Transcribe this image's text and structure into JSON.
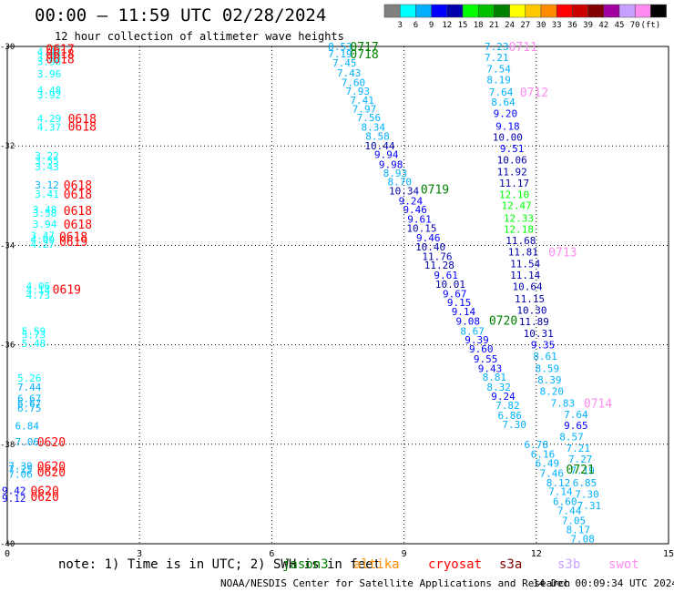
{
  "header": {
    "title": "00:00 — 11:59 UTC 02/28/2024",
    "subtitle": "12 hour collection of altimeter wave heights"
  },
  "footer": {
    "note": "note: 1) Time is in UTC; 2) SWH is in feet",
    "credit": "NOAA/NESDIS Center for Satellite Applications and Research",
    "timestamp": "14 Dec 00:09:34 UTC 2024"
  },
  "satellites": [
    {
      "name": "jason3",
      "color": "#008000"
    },
    {
      "name": "altika",
      "color": "#ff8c00"
    },
    {
      "name": "cryosat",
      "color": "#ff0000"
    },
    {
      "name": "s3a",
      "color": "#800000"
    },
    {
      "name": "s3b",
      "color": "#c8a0ff"
    },
    {
      "name": "swot",
      "color": "#ff8cf0"
    }
  ],
  "colorbar": {
    "colors": [
      "#808080",
      "#00ffff",
      "#00b0ff",
      "#0000ff",
      "#0000aa",
      "#00ff00",
      "#00c000",
      "#008000",
      "#ffff00",
      "#ffc800",
      "#ff8c00",
      "#ff0000",
      "#c80000",
      "#800000",
      "#a000a0",
      "#c8a0ff",
      "#ff8cf0",
      "#000000"
    ],
    "labels": [
      "3",
      "6",
      "9",
      "12",
      "15",
      "18",
      "21",
      "24",
      "27",
      "30",
      "33",
      "36",
      "39",
      "42",
      "45",
      "70",
      "(ft)"
    ]
  },
  "chart_data": {
    "type": "scatter",
    "xlim": [
      0,
      15
    ],
    "ylim": [
      -40,
      -30
    ],
    "x_ticks": [
      "0",
      "3",
      "6",
      "9",
      "12",
      "15"
    ],
    "y_ticks": [
      "-30",
      "-32",
      "-34",
      "-36",
      "-38",
      "-40"
    ],
    "grid": true,
    "points": [
      {
        "x": 0.95,
        "y": -30.1,
        "v": "4.44",
        "c": "#00ffff"
      },
      {
        "x": 0.95,
        "y": -30.22,
        "v": "3.79",
        "c": "#00ffff"
      },
      {
        "x": 0.95,
        "y": -30.3,
        "v": "3.96",
        "c": "#00ffff"
      },
      {
        "x": 0.95,
        "y": -30.55,
        "v": "3.96",
        "c": "#00ffff"
      },
      {
        "x": 0.95,
        "y": -30.88,
        "v": "4.48",
        "c": "#00ffff"
      },
      {
        "x": 0.95,
        "y": -30.97,
        "v": "3.92",
        "c": "#00ffff"
      },
      {
        "x": 0.95,
        "y": -31.45,
        "v": "4.29",
        "c": "#00ffff"
      },
      {
        "x": 0.95,
        "y": -31.62,
        "v": "4.37",
        "c": "#00ffff"
      },
      {
        "x": 0.9,
        "y": -32.2,
        "v": "3.22",
        "c": "#00ffff"
      },
      {
        "x": 0.9,
        "y": -32.3,
        "v": "3.55",
        "c": "#00ffff"
      },
      {
        "x": 0.9,
        "y": -32.42,
        "v": "3.43",
        "c": "#00ffff"
      },
      {
        "x": 0.9,
        "y": -32.78,
        "v": "3.12",
        "c": "#00b0ff"
      },
      {
        "x": 0.9,
        "y": -32.97,
        "v": "3.41",
        "c": "#00ffff"
      },
      {
        "x": 0.85,
        "y": -33.28,
        "v": "3.48",
        "c": "#00ffff"
      },
      {
        "x": 0.85,
        "y": -33.35,
        "v": "3.58",
        "c": "#00ffff"
      },
      {
        "x": 0.85,
        "y": -33.57,
        "v": "3.94",
        "c": "#00ffff"
      },
      {
        "x": 0.8,
        "y": -33.8,
        "v": "3.47",
        "c": "#00ffff"
      },
      {
        "x": 0.8,
        "y": -33.88,
        "v": "4.09",
        "c": "#00ffff"
      },
      {
        "x": 0.8,
        "y": -33.97,
        "v": "4.27",
        "c": "#00ffff"
      },
      {
        "x": 0.7,
        "y": -34.82,
        "v": "4.06",
        "c": "#00ffff"
      },
      {
        "x": 0.7,
        "y": -34.9,
        "v": "4.14",
        "c": "#00ffff"
      },
      {
        "x": 0.7,
        "y": -35.0,
        "v": "4.73",
        "c": "#00ffff"
      },
      {
        "x": 0.6,
        "y": -35.72,
        "v": "5.59",
        "c": "#00ffff"
      },
      {
        "x": 0.6,
        "y": -35.8,
        "v": "5.73",
        "c": "#00ffff"
      },
      {
        "x": 0.6,
        "y": -35.97,
        "v": "5.48",
        "c": "#00ffff"
      },
      {
        "x": 0.5,
        "y": -36.67,
        "v": "5.26",
        "c": "#00ffff"
      },
      {
        "x": 0.5,
        "y": -36.85,
        "v": "7.44",
        "c": "#00b0ff"
      },
      {
        "x": 0.5,
        "y": -37.08,
        "v": "6.67",
        "c": "#00b0ff"
      },
      {
        "x": 0.5,
        "y": -37.18,
        "v": "6.67",
        "c": "#00b0ff"
      },
      {
        "x": 0.5,
        "y": -37.27,
        "v": "6.75",
        "c": "#00b0ff"
      },
      {
        "x": 0.45,
        "y": -37.63,
        "v": "6.84",
        "c": "#00b0ff"
      },
      {
        "x": 0.45,
        "y": -37.95,
        "v": "7.06",
        "c": "#00b0ff"
      },
      {
        "x": 0.3,
        "y": -38.43,
        "v": "7.39",
        "c": "#00b0ff"
      },
      {
        "x": 0.3,
        "y": -38.5,
        "v": "7.25",
        "c": "#00b0ff"
      },
      {
        "x": 0.3,
        "y": -38.6,
        "v": "7.06",
        "c": "#00b0ff"
      },
      {
        "x": 0.15,
        "y": -38.93,
        "v": "9.42",
        "c": "#0000ff"
      },
      {
        "x": 0.15,
        "y": -39.08,
        "v": "9.12",
        "c": "#0000ff"
      },
      {
        "x": 7.55,
        "y": -30.0,
        "v": "8.53",
        "c": "#00b0ff"
      },
      {
        "x": 7.55,
        "y": -30.15,
        "v": "7.19",
        "c": "#00b0ff"
      },
      {
        "x": 7.65,
        "y": -30.33,
        "v": "7.45",
        "c": "#00b0ff"
      },
      {
        "x": 7.75,
        "y": -30.53,
        "v": "7.43",
        "c": "#00b0ff"
      },
      {
        "x": 7.85,
        "y": -30.72,
        "v": "7.60",
        "c": "#00b0ff"
      },
      {
        "x": 7.95,
        "y": -30.9,
        "v": "7.93",
        "c": "#00b0ff"
      },
      {
        "x": 8.05,
        "y": -31.08,
        "v": "7.41",
        "c": "#00b0ff"
      },
      {
        "x": 8.1,
        "y": -31.25,
        "v": "7.97",
        "c": "#00b0ff"
      },
      {
        "x": 8.2,
        "y": -31.43,
        "v": "7.56",
        "c": "#00b0ff"
      },
      {
        "x": 8.3,
        "y": -31.62,
        "v": "8.34",
        "c": "#00b0ff"
      },
      {
        "x": 8.4,
        "y": -31.8,
        "v": "8.58",
        "c": "#00b0ff"
      },
      {
        "x": 8.45,
        "y": -32.0,
        "v": "10.44",
        "c": "#0000aa"
      },
      {
        "x": 8.6,
        "y": -32.17,
        "v": "9.94",
        "c": "#0000ff"
      },
      {
        "x": 8.7,
        "y": -32.37,
        "v": "9.98",
        "c": "#0000ff"
      },
      {
        "x": 8.8,
        "y": -32.55,
        "v": "8.93",
        "c": "#00b0ff"
      },
      {
        "x": 8.9,
        "y": -32.72,
        "v": "8.70",
        "c": "#00b0ff"
      },
      {
        "x": 9.0,
        "y": -32.9,
        "v": "10.34",
        "c": "#0000aa"
      },
      {
        "x": 9.15,
        "y": -33.1,
        "v": "9.24",
        "c": "#0000ff"
      },
      {
        "x": 9.25,
        "y": -33.28,
        "v": "9.46",
        "c": "#0000ff"
      },
      {
        "x": 9.35,
        "y": -33.47,
        "v": "9.61",
        "c": "#0000ff"
      },
      {
        "x": 9.4,
        "y": -33.65,
        "v": "10.15",
        "c": "#0000aa"
      },
      {
        "x": 9.55,
        "y": -33.85,
        "v": "9.46",
        "c": "#0000ff"
      },
      {
        "x": 9.6,
        "y": -34.03,
        "v": "10.40",
        "c": "#0000aa"
      },
      {
        "x": 9.75,
        "y": -34.22,
        "v": "11.76",
        "c": "#0000aa"
      },
      {
        "x": 9.8,
        "y": -34.4,
        "v": "11.28",
        "c": "#0000aa"
      },
      {
        "x": 9.95,
        "y": -34.6,
        "v": "9.61",
        "c": "#0000ff"
      },
      {
        "x": 10.05,
        "y": -34.78,
        "v": "10.01",
        "c": "#0000aa"
      },
      {
        "x": 10.15,
        "y": -34.97,
        "v": "9.67",
        "c": "#0000ff"
      },
      {
        "x": 10.25,
        "y": -35.15,
        "v": "9.15",
        "c": "#0000ff"
      },
      {
        "x": 10.35,
        "y": -35.33,
        "v": "9.14",
        "c": "#0000ff"
      },
      {
        "x": 10.45,
        "y": -35.52,
        "v": "9.08",
        "c": "#0000ff"
      },
      {
        "x": 10.55,
        "y": -35.72,
        "v": "8.67",
        "c": "#00b0ff"
      },
      {
        "x": 10.65,
        "y": -35.9,
        "v": "9.39",
        "c": "#0000ff"
      },
      {
        "x": 10.75,
        "y": -36.08,
        "v": "9.60",
        "c": "#0000ff"
      },
      {
        "x": 10.85,
        "y": -36.28,
        "v": "9.55",
        "c": "#0000ff"
      },
      {
        "x": 10.95,
        "y": -36.47,
        "v": "9.43",
        "c": "#0000ff"
      },
      {
        "x": 11.05,
        "y": -36.65,
        "v": "8.81",
        "c": "#00b0ff"
      },
      {
        "x": 11.15,
        "y": -36.85,
        "v": "8.32",
        "c": "#00b0ff"
      },
      {
        "x": 11.25,
        "y": -37.03,
        "v": "9.24",
        "c": "#0000ff"
      },
      {
        "x": 11.35,
        "y": -37.22,
        "v": "7.82",
        "c": "#00b0ff"
      },
      {
        "x": 11.4,
        "y": -37.42,
        "v": "6.86",
        "c": "#00b0ff"
      },
      {
        "x": 11.5,
        "y": -37.6,
        "v": "7.30",
        "c": "#00b0ff"
      },
      {
        "x": 12.0,
        "y": -38.0,
        "v": "6.78",
        "c": "#00b0ff"
      },
      {
        "x": 12.15,
        "y": -38.2,
        "v": "6.16",
        "c": "#00b0ff"
      },
      {
        "x": 12.25,
        "y": -38.38,
        "v": "6.49",
        "c": "#00b0ff"
      },
      {
        "x": 12.35,
        "y": -38.58,
        "v": "7.46",
        "c": "#00b0ff"
      },
      {
        "x": 12.5,
        "y": -38.77,
        "v": "8.12",
        "c": "#00b0ff"
      },
      {
        "x": 12.55,
        "y": -38.95,
        "v": "7.14",
        "c": "#00b0ff"
      },
      {
        "x": 12.65,
        "y": -39.15,
        "v": "6.60",
        "c": "#00b0ff"
      },
      {
        "x": 12.75,
        "y": -39.33,
        "v": "7.44",
        "c": "#00b0ff"
      },
      {
        "x": 12.85,
        "y": -39.53,
        "v": "7.05",
        "c": "#00b0ff"
      },
      {
        "x": 12.95,
        "y": -39.72,
        "v": "8.17",
        "c": "#00b0ff"
      },
      {
        "x": 13.05,
        "y": -39.9,
        "v": "7.08",
        "c": "#00b0ff"
      },
      {
        "x": 11.1,
        "y": -30.0,
        "v": "7.23",
        "c": "#00b0ff"
      },
      {
        "x": 11.1,
        "y": -30.22,
        "v": "7.21",
        "c": "#00b0ff"
      },
      {
        "x": 11.15,
        "y": -30.45,
        "v": "7.54",
        "c": "#00b0ff"
      },
      {
        "x": 11.15,
        "y": -30.67,
        "v": "8.19",
        "c": "#00b0ff"
      },
      {
        "x": 11.2,
        "y": -30.92,
        "v": "7.64",
        "c": "#00b0ff"
      },
      {
        "x": 11.25,
        "y": -31.12,
        "v": "8.64",
        "c": "#00b0ff"
      },
      {
        "x": 11.3,
        "y": -31.35,
        "v": "9.20",
        "c": "#0000ff"
      },
      {
        "x": 11.35,
        "y": -31.6,
        "v": "9.18",
        "c": "#0000ff"
      },
      {
        "x": 11.35,
        "y": -31.82,
        "v": "10.00",
        "c": "#0000aa"
      },
      {
        "x": 11.45,
        "y": -32.05,
        "v": "9.51",
        "c": "#0000ff"
      },
      {
        "x": 11.45,
        "y": -32.28,
        "v": "10.06",
        "c": "#0000aa"
      },
      {
        "x": 11.45,
        "y": -32.52,
        "v": "11.92",
        "c": "#0000aa"
      },
      {
        "x": 11.5,
        "y": -32.75,
        "v": "11.17",
        "c": "#0000aa"
      },
      {
        "x": 11.5,
        "y": -32.98,
        "v": "12.10",
        "c": "#00ff00"
      },
      {
        "x": 11.55,
        "y": -33.2,
        "v": "12.47",
        "c": "#00ff00"
      },
      {
        "x": 11.6,
        "y": -33.45,
        "v": "12.33",
        "c": "#00ff00"
      },
      {
        "x": 11.6,
        "y": -33.67,
        "v": "12.18",
        "c": "#00ff00"
      },
      {
        "x": 11.65,
        "y": -33.9,
        "v": "11.68",
        "c": "#0000aa"
      },
      {
        "x": 11.7,
        "y": -34.13,
        "v": "11.81",
        "c": "#0000aa"
      },
      {
        "x": 11.75,
        "y": -34.37,
        "v": "11.54",
        "c": "#0000aa"
      },
      {
        "x": 11.75,
        "y": -34.6,
        "v": "11.14",
        "c": "#0000aa"
      },
      {
        "x": 11.8,
        "y": -34.83,
        "v": "10.64",
        "c": "#0000aa"
      },
      {
        "x": 11.85,
        "y": -35.07,
        "v": "11.15",
        "c": "#0000aa"
      },
      {
        "x": 11.9,
        "y": -35.3,
        "v": "10.30",
        "c": "#0000aa"
      },
      {
        "x": 11.95,
        "y": -35.53,
        "v": "11.89",
        "c": "#0000aa"
      },
      {
        "x": 12.05,
        "y": -35.77,
        "v": "10.31",
        "c": "#0000aa"
      },
      {
        "x": 12.15,
        "y": -36.0,
        "v": "9.35",
        "c": "#0000ff"
      },
      {
        "x": 12.2,
        "y": -36.23,
        "v": "8.61",
        "c": "#00b0ff"
      },
      {
        "x": 12.25,
        "y": -36.47,
        "v": "8.59",
        "c": "#00b0ff"
      },
      {
        "x": 12.3,
        "y": -36.7,
        "v": "8.39",
        "c": "#00b0ff"
      },
      {
        "x": 12.35,
        "y": -36.93,
        "v": "8.20",
        "c": "#00b0ff"
      },
      {
        "x": 12.6,
        "y": -37.17,
        "v": "7.83",
        "c": "#00b0ff"
      },
      {
        "x": 12.9,
        "y": -37.4,
        "v": "7.64",
        "c": "#00b0ff"
      },
      {
        "x": 12.9,
        "y": -37.62,
        "v": "9.65",
        "c": "#0000ff"
      },
      {
        "x": 12.8,
        "y": -37.85,
        "v": "8.57",
        "c": "#00b0ff"
      },
      {
        "x": 12.95,
        "y": -38.08,
        "v": "7.21",
        "c": "#00b0ff"
      },
      {
        "x": 13.0,
        "y": -38.3,
        "v": "7.27",
        "c": "#00b0ff"
      },
      {
        "x": 13.05,
        "y": -38.53,
        "v": "7.19",
        "c": "#00b0ff"
      },
      {
        "x": 13.1,
        "y": -38.77,
        "v": "6.85",
        "c": "#00b0ff"
      },
      {
        "x": 13.15,
        "y": -39.0,
        "v": "7.30",
        "c": "#00b0ff"
      },
      {
        "x": 13.2,
        "y": -39.23,
        "v": "7.31",
        "c": "#00b0ff"
      }
    ],
    "pass_labels": [
      {
        "x": 1.2,
        "y": -30.05,
        "label": "0617",
        "c": "#ff0000"
      },
      {
        "x": 1.2,
        "y": -30.15,
        "label": "0618",
        "c": "#ff0000"
      },
      {
        "x": 1.2,
        "y": -30.25,
        "label": "0618",
        "c": "#ff0000"
      },
      {
        "x": 1.7,
        "y": -31.45,
        "label": "0618",
        "c": "#ff0000"
      },
      {
        "x": 1.7,
        "y": -31.6,
        "label": "0618",
        "c": "#ff0000"
      },
      {
        "x": 1.6,
        "y": -32.78,
        "label": "0618",
        "c": "#ff0000"
      },
      {
        "x": 1.6,
        "y": -32.97,
        "label": "0618",
        "c": "#ff0000"
      },
      {
        "x": 1.6,
        "y": -33.3,
        "label": "0618",
        "c": "#ff0000"
      },
      {
        "x": 1.6,
        "y": -33.57,
        "label": "0618",
        "c": "#ff0000"
      },
      {
        "x": 1.5,
        "y": -33.82,
        "label": "0618",
        "c": "#ff0000"
      },
      {
        "x": 1.5,
        "y": -33.92,
        "label": "0619",
        "c": "#ff0000"
      },
      {
        "x": 1.35,
        "y": -34.88,
        "label": "0619",
        "c": "#ff0000"
      },
      {
        "x": 1.0,
        "y": -37.95,
        "label": "0620",
        "c": "#ff0000"
      },
      {
        "x": 1.0,
        "y": -38.43,
        "label": "0620",
        "c": "#ff0000"
      },
      {
        "x": 1.0,
        "y": -38.55,
        "label": "0620",
        "c": "#ff0000"
      },
      {
        "x": 0.85,
        "y": -38.93,
        "label": "0620",
        "c": "#ff0000"
      },
      {
        "x": 0.85,
        "y": -39.05,
        "label": "0620",
        "c": "#ff0000"
      },
      {
        "x": 8.1,
        "y": -30.0,
        "label": "0717",
        "c": "#008000"
      },
      {
        "x": 8.1,
        "y": -30.15,
        "label": "0718",
        "c": "#008000"
      },
      {
        "x": 9.7,
        "y": -32.87,
        "label": "0719",
        "c": "#008000"
      },
      {
        "x": 11.25,
        "y": -35.5,
        "label": "0720",
        "c": "#008000"
      },
      {
        "x": 13.0,
        "y": -38.5,
        "label": "0721",
        "c": "#008000"
      },
      {
        "x": 11.7,
        "y": -30.0,
        "label": "0711",
        "c": "#ff8cf0"
      },
      {
        "x": 11.95,
        "y": -30.92,
        "label": "0712",
        "c": "#ff8cf0"
      },
      {
        "x": 12.6,
        "y": -34.13,
        "label": "0713",
        "c": "#ff8cf0"
      },
      {
        "x": 13.4,
        "y": -37.17,
        "label": "0714",
        "c": "#ff8cf0"
      }
    ]
  }
}
